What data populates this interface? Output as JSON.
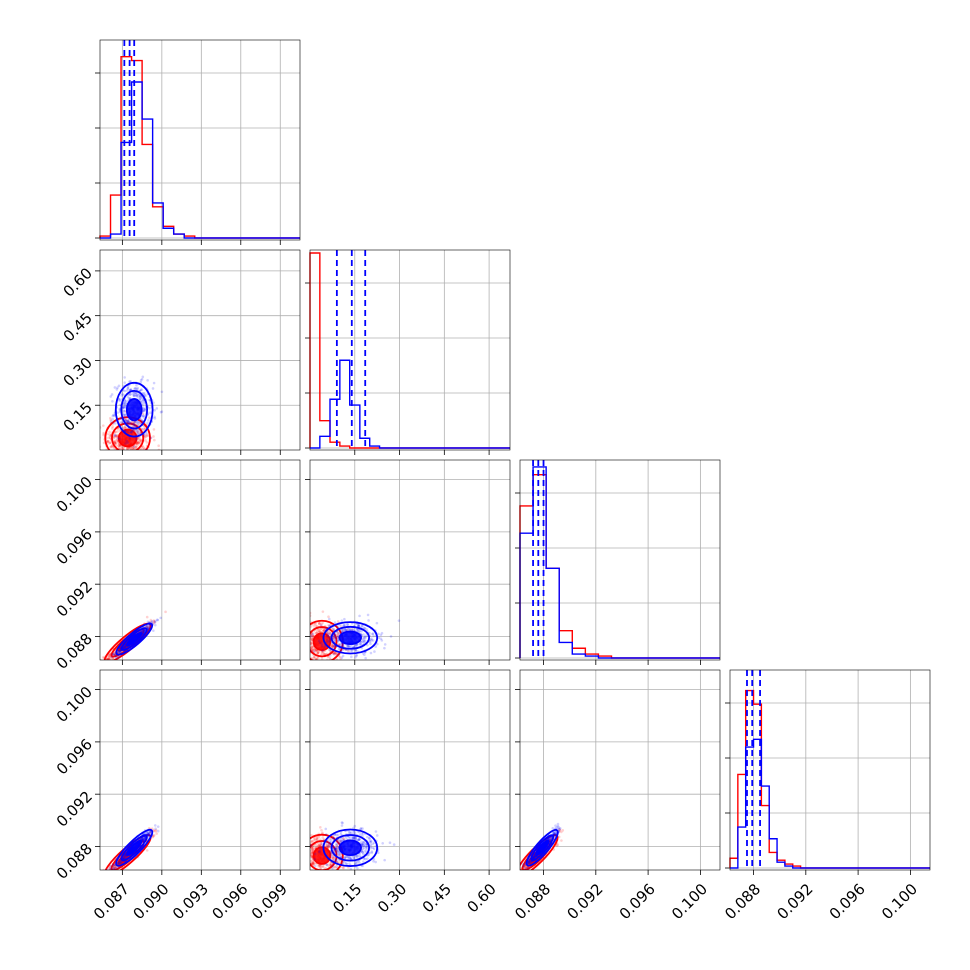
{
  "chart_data": {
    "type": "corner",
    "parameters": 4,
    "colors": {
      "red": "#ff0000",
      "blue": "#0000ff"
    },
    "grid": true,
    "axes": {
      "p0": {
        "range": [
          0.0853,
          0.1005
        ],
        "ticks": [
          0.087,
          0.09,
          0.093,
          0.096,
          0.099
        ],
        "tick_labels": [
          "0.087",
          "0.090",
          "0.093",
          "0.096",
          "0.099"
        ]
      },
      "p1": {
        "range": [
          0.0,
          0.67
        ],
        "ticks": [
          0.15,
          0.3,
          0.45,
          0.6
        ],
        "tick_labels": [
          "0.15",
          "0.30",
          "0.45",
          "0.60"
        ]
      },
      "p2": {
        "range": [
          0.0862,
          0.1015
        ],
        "ticks": [
          0.088,
          0.092,
          0.096,
          0.1
        ],
        "tick_labels": [
          "0.088",
          "0.092",
          "0.096",
          "0.100"
        ]
      },
      "p3": {
        "range": [
          0.0862,
          0.1015
        ],
        "ticks": [
          0.088,
          0.092,
          0.096,
          0.1
        ],
        "tick_labels": [
          "0.088",
          "0.092",
          "0.096",
          "0.100"
        ]
      }
    },
    "marginals": [
      {
        "param": "p0",
        "bin_edges": [
          0.0853,
          0.0861,
          0.0869,
          0.0877,
          0.0885,
          0.0893,
          0.0901,
          0.0909,
          0.0917,
          0.0925,
          0.1005
        ],
        "red": [
          0.01,
          0.22,
          0.93,
          0.91,
          0.48,
          0.16,
          0.06,
          0.02,
          0.01,
          0.0
        ],
        "blue": [
          0.0,
          0.02,
          0.49,
          0.8,
          0.61,
          0.18,
          0.05,
          0.02,
          0.0,
          0.0
        ],
        "blue_quantiles": [
          0.08715,
          0.08755,
          0.0879
        ]
      },
      {
        "param": "p1",
        "bin_edges": [
          0.0,
          0.033,
          0.067,
          0.1,
          0.133,
          0.167,
          0.2,
          0.233,
          0.267,
          0.67
        ],
        "red": [
          1.0,
          0.14,
          0.03,
          0.01,
          0.0,
          0.0,
          0.0,
          0.0,
          0.0
        ],
        "blue": [
          0.0,
          0.06,
          0.25,
          0.45,
          0.22,
          0.05,
          0.01,
          0.0,
          0.0
        ],
        "blue_quantiles": [
          0.09,
          0.14,
          0.185
        ]
      },
      {
        "param": "p2",
        "bin_edges": [
          0.0862,
          0.0872,
          0.0882,
          0.0892,
          0.0902,
          0.0912,
          0.0922,
          0.0932,
          0.1015
        ],
        "red": [
          0.78,
          0.94,
          0.46,
          0.14,
          0.05,
          0.02,
          0.01,
          0.0
        ],
        "blue": [
          0.64,
          0.98,
          0.46,
          0.08,
          0.02,
          0.01,
          0.0,
          0.0
        ],
        "blue_quantiles": [
          0.0872,
          0.0876,
          0.088
        ]
      },
      {
        "param": "p3",
        "bin_edges": [
          0.0862,
          0.0868,
          0.0874,
          0.088,
          0.0886,
          0.0892,
          0.0898,
          0.0904,
          0.091,
          0.0916,
          0.1015
        ],
        "red": [
          0.05,
          0.48,
          0.91,
          0.84,
          0.32,
          0.08,
          0.04,
          0.02,
          0.01,
          0.0
        ],
        "blue": [
          0.0,
          0.21,
          0.62,
          0.66,
          0.42,
          0.15,
          0.03,
          0.01,
          0.0,
          0.0
        ],
        "blue_quantiles": [
          0.0875,
          0.0879,
          0.0885
        ]
      }
    ],
    "joint_distributions": [
      {
        "x": "p0",
        "y": "p1",
        "red": {
          "mean": [
            0.0874,
            0.04
          ],
          "sd": [
            0.00085,
            0.035
          ],
          "rho": 0.0
        },
        "blue": {
          "mean": [
            0.0879,
            0.135
          ],
          "sd": [
            0.0007,
            0.045
          ],
          "rho": 0.0
        }
      },
      {
        "x": "p0",
        "y": "p2",
        "red": {
          "mean": [
            0.0874,
            0.0875
          ],
          "sd": [
            0.0009,
            0.00075
          ],
          "rho": 0.95
        },
        "blue": {
          "mean": [
            0.0879,
            0.0878
          ],
          "sd": [
            0.0007,
            0.0006
          ],
          "rho": 0.95
        }
      },
      {
        "x": "p1",
        "y": "p2",
        "red": {
          "mean": [
            0.04,
            0.0876
          ],
          "sd": [
            0.035,
            0.0008
          ],
          "rho": 0.0
        },
        "blue": {
          "mean": [
            0.135,
            0.0879
          ],
          "sd": [
            0.045,
            0.0006
          ],
          "rho": 0.0
        }
      },
      {
        "x": "p0",
        "y": "p3",
        "red": {
          "mean": [
            0.0874,
            0.0873
          ],
          "sd": [
            0.0009,
            0.0008
          ],
          "rho": 0.95
        },
        "blue": {
          "mean": [
            0.0879,
            0.0879
          ],
          "sd": [
            0.0007,
            0.0007
          ],
          "rho": 0.95
        }
      },
      {
        "x": "p1",
        "y": "p3",
        "red": {
          "mean": [
            0.04,
            0.0873
          ],
          "sd": [
            0.035,
            0.0008
          ],
          "rho": 0.0
        },
        "blue": {
          "mean": [
            0.135,
            0.0879
          ],
          "sd": [
            0.045,
            0.0007
          ],
          "rho": 0.0
        }
      },
      {
        "x": "p2",
        "y": "p3",
        "red": {
          "mean": [
            0.0875,
            0.0873
          ],
          "sd": [
            0.0008,
            0.0008
          ],
          "rho": 0.95
        },
        "blue": {
          "mean": [
            0.0879,
            0.0879
          ],
          "sd": [
            0.0006,
            0.0007
          ],
          "rho": 0.95
        }
      }
    ]
  }
}
